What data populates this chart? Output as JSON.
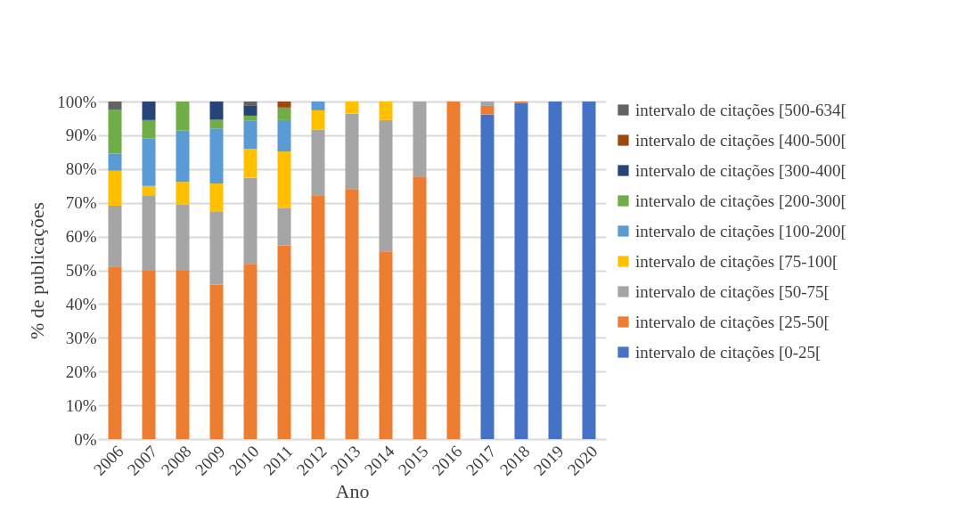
{
  "chart_data": {
    "type": "bar",
    "stacked": true,
    "xlabel": "Ano",
    "ylabel": "% de publicações",
    "legend": "right",
    "grid": "y",
    "categories": [
      "2006",
      "2007",
      "2008",
      "2009",
      "2010",
      "2011",
      "2012",
      "2013",
      "2014",
      "2015",
      "2016",
      "2017",
      "2018",
      "2019",
      "2020"
    ],
    "ylim": [
      0,
      100
    ],
    "yticks": [
      {
        "value": 0,
        "label": "0%"
      },
      {
        "value": 10,
        "label": "10%"
      },
      {
        "value": 20,
        "label": "20%"
      },
      {
        "value": 30,
        "label": "30%"
      },
      {
        "value": 40,
        "label": "40%"
      },
      {
        "value": 50,
        "label": "50%"
      },
      {
        "value": 60,
        "label": "60%"
      },
      {
        "value": 70,
        "label": "70%"
      },
      {
        "value": 80,
        "label": "80%"
      },
      {
        "value": 90,
        "label": "90%"
      },
      {
        "value": 100,
        "label": "100%"
      }
    ],
    "series": [
      {
        "name": "intervalo de citações [0-25[",
        "color": "#4472c4",
        "values": [
          null,
          null,
          null,
          null,
          null,
          null,
          null,
          null,
          null,
          null,
          null,
          96.2,
          99.6,
          100,
          100
        ]
      },
      {
        "name": "intervalo de citações [25-50[",
        "color": "#ed7d31",
        "values": [
          51.1,
          49.9,
          49.9,
          45.8,
          51.9,
          57.4,
          72.2,
          74.1,
          55.6,
          77.8,
          100,
          2.5,
          0.4,
          null,
          null
        ]
      },
      {
        "name": "intervalo de citações  [50-75[",
        "color": "#a5a5a5",
        "values": [
          18.0,
          22.3,
          19.6,
          21.7,
          25.5,
          11.1,
          19.5,
          22.3,
          38.9,
          22.2,
          null,
          1.3,
          null,
          null,
          null
        ]
      },
      {
        "name": "intervalo de citações  [75-100[",
        "color": "#ffc000",
        "values": [
          10.4,
          2.8,
          6.7,
          8.2,
          8.6,
          16.7,
          5.7,
          3.6,
          5.5,
          null,
          null,
          null,
          null,
          null,
          null
        ]
      },
      {
        "name": "intervalo de citações [100-200[",
        "color": "#5b9bd5",
        "values": [
          5.1,
          14.0,
          15.2,
          16.3,
          8.4,
          9.3,
          2.6,
          null,
          null,
          null,
          null,
          null,
          null,
          null,
          null
        ]
      },
      {
        "name": "intervalo de citações  [200-300[",
        "color": "#70ad47",
        "values": [
          12.9,
          5.5,
          8.6,
          2.6,
          1.4,
          3.7,
          null,
          null,
          null,
          null,
          null,
          null,
          null,
          null,
          null
        ]
      },
      {
        "name": "intervalo de citações  [300-400[",
        "color": "#264478",
        "values": [
          null,
          5.5,
          null,
          5.4,
          2.9,
          null,
          null,
          null,
          null,
          null,
          null,
          null,
          null,
          null,
          null
        ]
      },
      {
        "name": "intervalo de citações  [400-500[",
        "color": "#9e480e",
        "values": [
          null,
          null,
          null,
          null,
          null,
          1.8,
          null,
          null,
          null,
          null,
          null,
          null,
          null,
          null,
          null
        ]
      },
      {
        "name": "intervalo de citações  [500-634[",
        "color": "#636363",
        "values": [
          2.5,
          null,
          null,
          null,
          1.3,
          null,
          null,
          null,
          null,
          null,
          null,
          null,
          null,
          null,
          null
        ]
      }
    ]
  }
}
